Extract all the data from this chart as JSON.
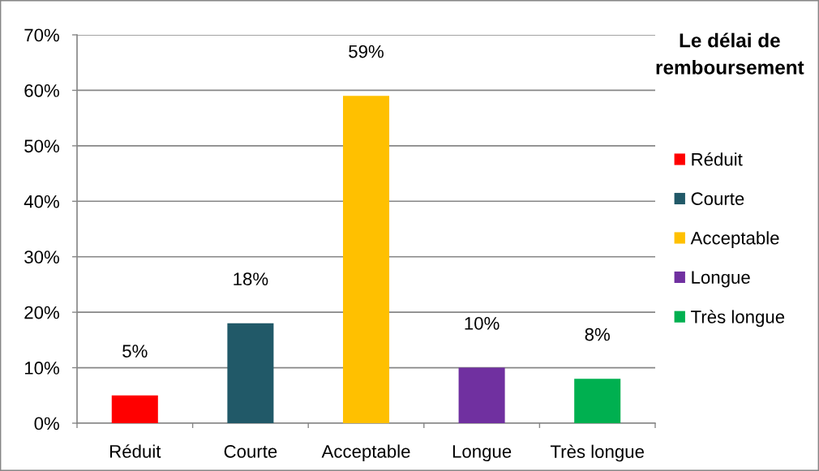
{
  "chart_data": {
    "type": "bar",
    "categories": [
      "Réduit",
      "Courte",
      "Acceptable",
      "Longue",
      "Très longue"
    ],
    "stacked": true,
    "series": [
      {
        "name": "Réduit",
        "color": "#ff0000",
        "values": [
          5,
          null,
          null,
          null,
          null
        ],
        "value_labels": [
          "5%",
          null,
          null,
          null,
          null
        ]
      },
      {
        "name": "Courte",
        "color": "#215968",
        "values": [
          null,
          18,
          null,
          null,
          null
        ],
        "value_labels": [
          null,
          "18%",
          null,
          null,
          null
        ]
      },
      {
        "name": "Acceptable",
        "color": "#ffc000",
        "values": [
          null,
          null,
          59,
          null,
          null
        ],
        "value_labels": [
          null,
          null,
          "59%",
          null,
          null
        ]
      },
      {
        "name": "Longue",
        "color": "#7030a0",
        "values": [
          null,
          null,
          null,
          10,
          null
        ],
        "value_labels": [
          null,
          null,
          null,
          "10%",
          null
        ]
      },
      {
        "name": "Très longue",
        "color": "#00b050",
        "values": [
          null,
          null,
          null,
          null,
          8
        ],
        "value_labels": [
          null,
          null,
          null,
          null,
          "8%"
        ]
      }
    ],
    "ylim": [
      0,
      70
    ],
    "yticks": [
      {
        "value": 0,
        "label": "0%"
      },
      {
        "value": 10,
        "label": "10%"
      },
      {
        "value": 20,
        "label": "20%"
      },
      {
        "value": 30,
        "label": "30%"
      },
      {
        "value": 40,
        "label": "40%"
      },
      {
        "value": 50,
        "label": "50%"
      },
      {
        "value": 60,
        "label": "60%"
      },
      {
        "value": 70,
        "label": "70%"
      }
    ],
    "grid": "y",
    "legend": "right",
    "legend_title": "Le délai de\nremboursement"
  }
}
